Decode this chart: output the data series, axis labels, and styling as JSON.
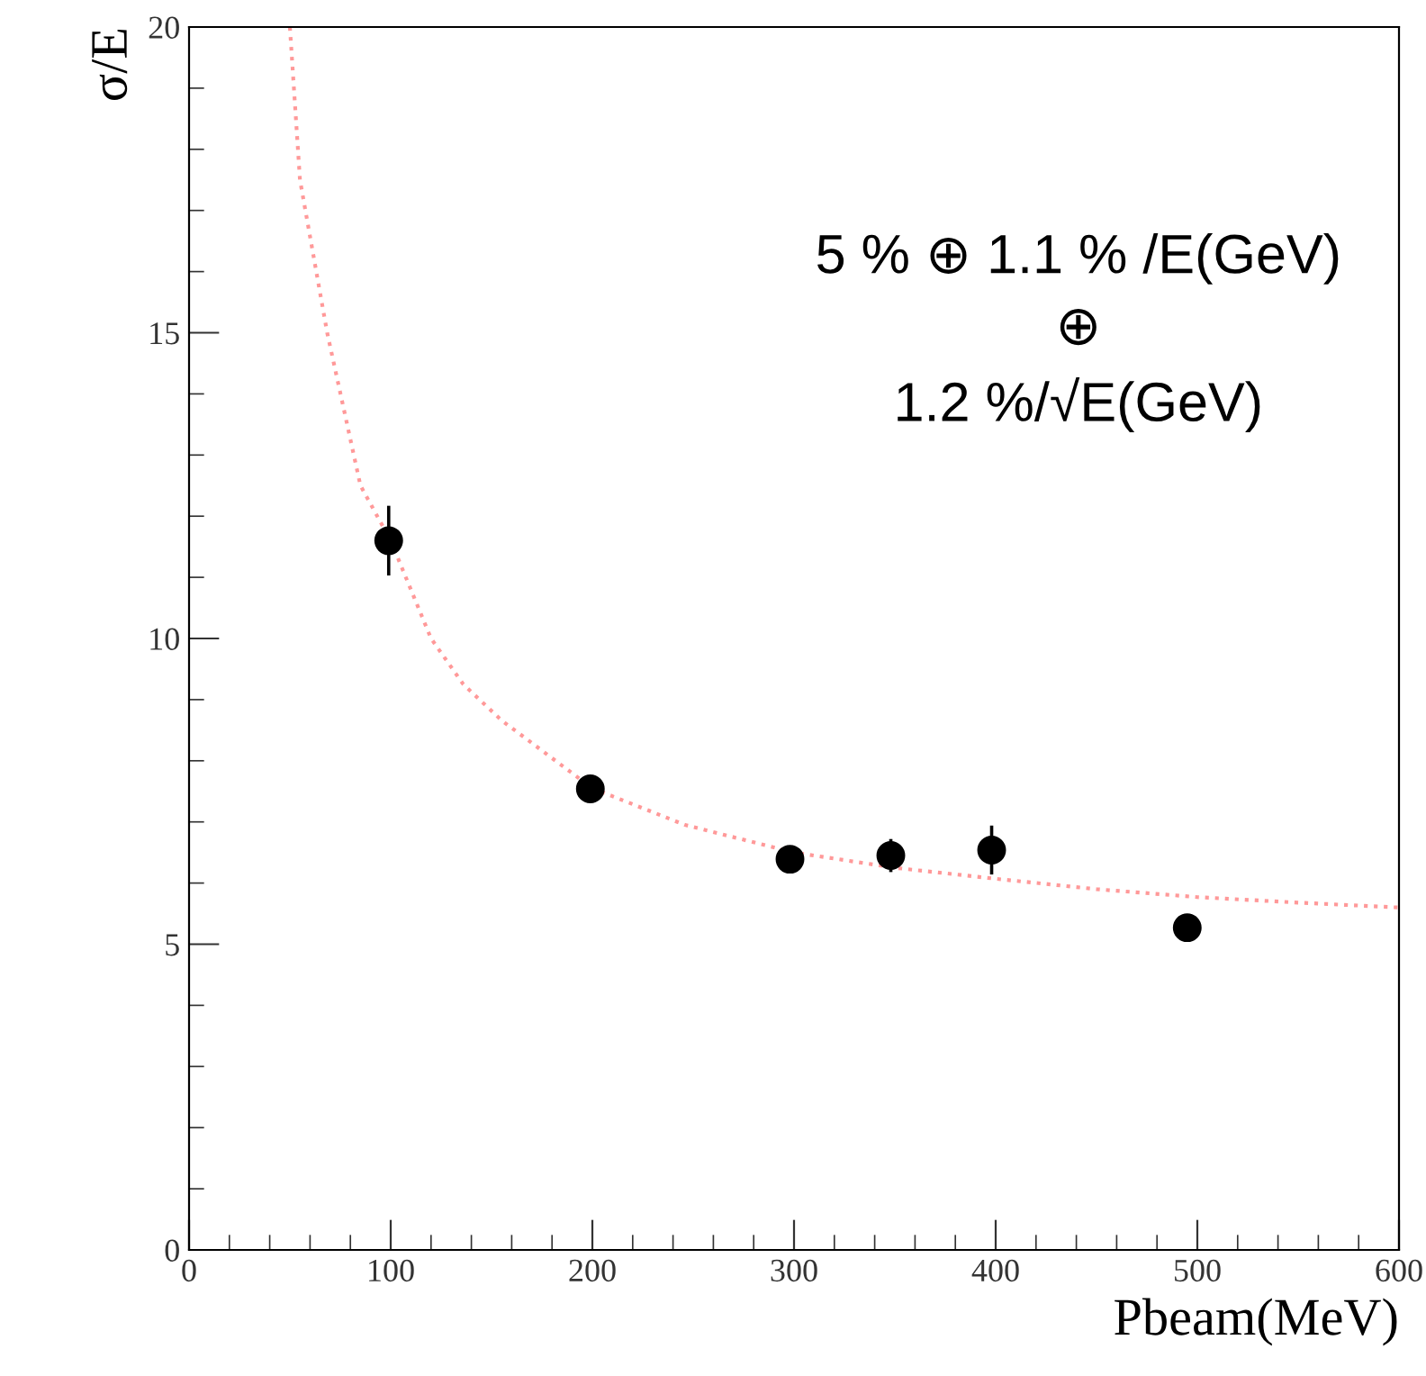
{
  "chart_data": {
    "type": "scatter",
    "xlabel": "Pbeam(MeV)",
    "ylabel": "σ/E",
    "xlim": [
      0,
      600
    ],
    "xticks": [
      0,
      100,
      200,
      300,
      400,
      500,
      600
    ],
    "ylim": [
      0,
      20
    ],
    "yticks": [
      0,
      5,
      10,
      15,
      20
    ],
    "grid": false,
    "legend": false,
    "annotations": [
      "5 % ⊕ 1.1 % /E(GeV)\n⊕\n1.2 %/√E(GeV)"
    ],
    "series": [
      {
        "color": "#000000",
        "marker": "circle",
        "x": [
          99,
          199,
          298,
          348,
          398,
          495
        ],
        "values": [
          11.6,
          7.54,
          6.39,
          6.45,
          6.54,
          5.27
        ],
        "errors": [
          0.57,
          null,
          null,
          0.27,
          0.4,
          null
        ]
      },
      {
        "type": "line",
        "color": "#ff9999",
        "line_style": "dotted",
        "marker": "none",
        "x": [
          50,
          55,
          68.5,
          85,
          100,
          120,
          136,
          155,
          200,
          246,
          300,
          350,
          400,
          450,
          500,
          550,
          600
        ],
        "values": [
          20,
          17.5,
          15,
          12.5,
          11.6,
          10,
          9.25,
          8.66,
          7.55,
          6.95,
          6.5,
          6.25,
          6.07,
          5.9,
          5.77,
          5.68,
          5.6
        ]
      }
    ]
  }
}
